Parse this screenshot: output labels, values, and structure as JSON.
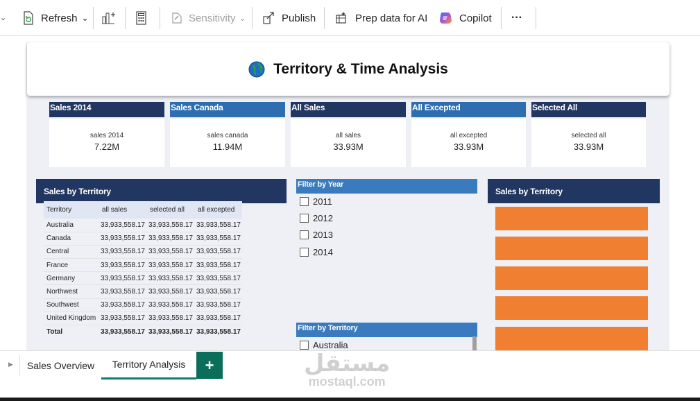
{
  "toolbar": {
    "refresh": "Refresh",
    "sensitivity": "Sensitivity",
    "publish": "Publish",
    "prep_ai": "Prep data for AI",
    "copilot": "Copilot",
    "more": "···"
  },
  "report": {
    "title": "Territory & Time Analysis",
    "kpis": [
      {
        "header": "Sales 2014",
        "label": "sales 2014",
        "value": "7.22M"
      },
      {
        "header": "Sales Canada",
        "label": "sales canada",
        "value": "11.94M"
      },
      {
        "header": "All Sales",
        "label": "all sales",
        "value": "33.93M"
      },
      {
        "header": "All Excepted",
        "label": "all excepted",
        "value": "33.93M"
      },
      {
        "header": "Selected All",
        "label": "selected all",
        "value": "33.93M"
      }
    ],
    "kpi_colors": [
      "#213661",
      "#2e6db0",
      "#213661",
      "#2e6db0",
      "#213661"
    ],
    "table": {
      "title": "Sales by Territory",
      "columns": [
        "Territory",
        "all sales",
        "selected all",
        "all excepted"
      ],
      "rows": [
        [
          "Australia",
          "33,933,558.17",
          "33,933,558.17",
          "33,933,558.17"
        ],
        [
          "Canada",
          "33,933,558.17",
          "33,933,558.17",
          "33,933,558.17"
        ],
        [
          "Central",
          "33,933,558.17",
          "33,933,558.17",
          "33,933,558.17"
        ],
        [
          "France",
          "33,933,558.17",
          "33,933,558.17",
          "33,933,558.17"
        ],
        [
          "Germany",
          "33,933,558.17",
          "33,933,558.17",
          "33,933,558.17"
        ],
        [
          "Northwest",
          "33,933,558.17",
          "33,933,558.17",
          "33,933,558.17"
        ],
        [
          "Southwest",
          "33,933,558.17",
          "33,933,558.17",
          "33,933,558.17"
        ],
        [
          "United Kingdom",
          "33,933,558.17",
          "33,933,558.17",
          "33,933,558.17"
        ]
      ],
      "total": [
        "Total",
        "33,933,558.17",
        "33,933,558.17",
        "33,933,558.17"
      ]
    },
    "year_filter": {
      "title": "Filter by Year",
      "options": [
        "2011",
        "2012",
        "2013",
        "2014"
      ]
    },
    "territory_filter": {
      "title": "Filter by Territory",
      "options": [
        "Australia"
      ]
    },
    "bar_chart": {
      "title": "Sales by Territory",
      "bar_color": "#f07f32"
    }
  },
  "tabs": [
    {
      "label": "Sales Overview",
      "active": false
    },
    {
      "label": "Territory Analysis",
      "active": true
    }
  ],
  "watermark": {
    "arabic": "مستقل",
    "latin": "mostaql.com"
  }
}
